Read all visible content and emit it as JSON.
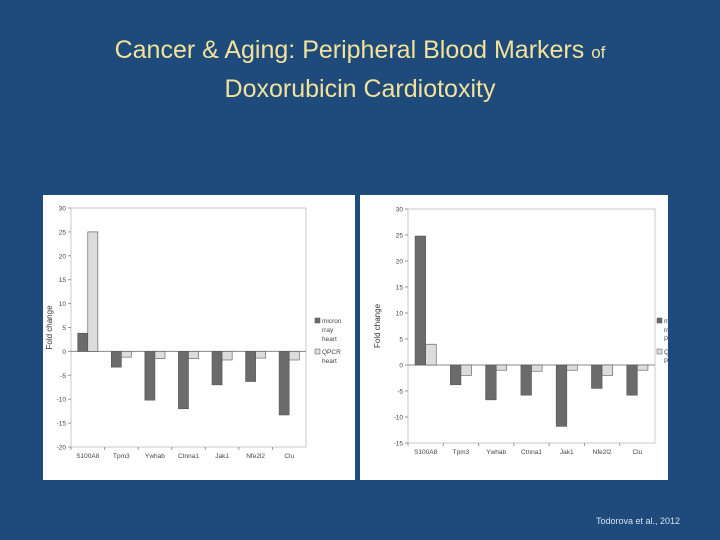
{
  "slide": {
    "title_line1_main": "Cancer & Aging: Peripheral Blood Markers",
    "title_line1_small": "of",
    "title_line2": "Doxorubicin Cardiotoxity",
    "citation": "Todorova et al., 2012"
  },
  "colors": {
    "background": "#1f4a7c",
    "title": "#f2e29a",
    "series_dark": "#6b6b6b",
    "series_light": "#dcdcdc"
  },
  "chart_data": [
    {
      "type": "bar",
      "ylabel": "Fold change",
      "ylim": [
        -20,
        30
      ],
      "yticks": [
        30,
        25,
        20,
        15,
        10,
        5,
        0,
        -5,
        -10,
        -15,
        -20
      ],
      "categories": [
        "S100A8",
        "Tpm3",
        "Ywhab",
        "Ctnna1",
        "Jak1",
        "Nfe2l2",
        "Clu"
      ],
      "series": [
        {
          "name": "microarray heart",
          "legend_lines": [
            "micron",
            "rray",
            "heart"
          ],
          "values": [
            3.8,
            -3.3,
            -10.2,
            -12.0,
            -7.0,
            -6.3,
            -13.3
          ]
        },
        {
          "name": "QPCR heart",
          "legend_lines": [
            "QPCR",
            "heart"
          ],
          "values": [
            25.0,
            -1.2,
            -1.5,
            -1.5,
            -1.8,
            -1.4,
            -1.8
          ]
        }
      ]
    },
    {
      "type": "bar",
      "ylabel": "Fold change",
      "ylim": [
        -15,
        30
      ],
      "yticks": [
        30,
        25,
        20,
        15,
        10,
        5,
        0,
        -5,
        -10,
        -15
      ],
      "categories": [
        "S100A8",
        "Tpm3",
        "Ywhab",
        "Ctnna1",
        "Jak1",
        "Nfe2l2",
        "Clu"
      ],
      "series": [
        {
          "name": "microarray PBMC",
          "legend_lines": [
            "microa",
            "rray",
            "PBMC"
          ],
          "values": [
            24.8,
            -3.8,
            -6.7,
            -5.8,
            -11.8,
            -4.5,
            -5.8
          ]
        },
        {
          "name": "QPCR PBMC",
          "legend_lines": [
            "QPCR",
            "PBMC"
          ],
          "values": [
            4.0,
            -2.0,
            -1.0,
            -1.2,
            -1.0,
            -2.0,
            -1.0
          ]
        }
      ]
    }
  ]
}
